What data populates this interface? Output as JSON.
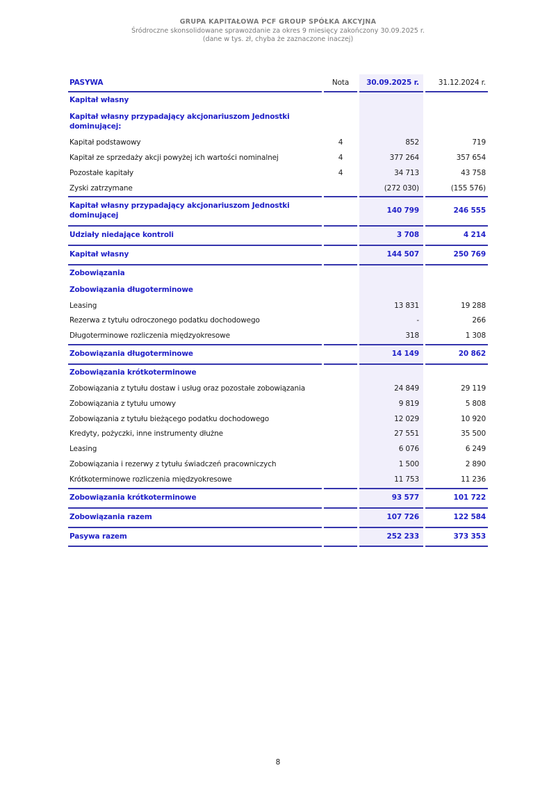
{
  "doc_header": {
    "company": "GRUPA KAPITAŁOWA PCF GROUP SPÓŁKA AKCYJNA",
    "subtitle": "Śródroczne skonsolidowane sprawozdanie za okres 9 miesięcy zakończony 30.09.2025 r.",
    "note": "(dane w tys. zł, chyba że zaznaczone inaczej)"
  },
  "colors": {
    "accent_text": "#2121c8",
    "rule_line": "#3535ad",
    "highlight_column_bg": "#f1effb",
    "muted_header_text": "#7a7a7a"
  },
  "table": {
    "columns": [
      "PASYWA",
      "Nota",
      "30.09.2025 r.",
      "31.12.2024 r."
    ],
    "rows": [
      {
        "label": "Kapitał własny",
        "nota": "",
        "v1": "",
        "v2": "",
        "style": "section"
      },
      {
        "label": "Kapitał własny przypadający akcjonariuszom Jednostki dominującej:",
        "nota": "",
        "v1": "",
        "v2": "",
        "style": "section"
      },
      {
        "label": "Kapitał podstawowy",
        "nota": "4",
        "v1": "852",
        "v2": "719",
        "style": "data"
      },
      {
        "label": "Kapitał ze sprzedaży akcji powyżej ich wartości nominalnej",
        "nota": "4",
        "v1": "377 264",
        "v2": "357 654",
        "style": "data"
      },
      {
        "label": "Pozostałe kapitały",
        "nota": "4",
        "v1": "34 713",
        "v2": "43 758",
        "style": "data"
      },
      {
        "label": "Zyski zatrzymane",
        "nota": "",
        "v1": "(272 030)",
        "v2": "(155 576)",
        "style": "data"
      },
      {
        "label": "Kapitał własny przypadający akcjonariuszom Jednostki dominującej",
        "nota": "",
        "v1": "140 799",
        "v2": "246 555",
        "style": "summary"
      },
      {
        "label": "Udziały niedające kontroli",
        "nota": "",
        "v1": "3 708",
        "v2": "4 214",
        "style": "summary"
      },
      {
        "label": "Kapitał własny",
        "nota": "",
        "v1": "144 507",
        "v2": "250 769",
        "style": "summary"
      },
      {
        "label": "Zobowiązania",
        "nota": "",
        "v1": "",
        "v2": "",
        "style": "section"
      },
      {
        "label": "Zobowiązania długoterminowe",
        "nota": "",
        "v1": "",
        "v2": "",
        "style": "section"
      },
      {
        "label": "Leasing",
        "nota": "",
        "v1": "13 831",
        "v2": "19 288",
        "style": "data"
      },
      {
        "label": "Rezerwa z tytułu odroczonego podatku dochodowego",
        "nota": "",
        "v1": "-",
        "v2": "266",
        "style": "data"
      },
      {
        "label": "Długoterminowe rozliczenia międzyokresowe",
        "nota": "",
        "v1": "318",
        "v2": "1 308",
        "style": "data"
      },
      {
        "label": "Zobowiązania długoterminowe",
        "nota": "",
        "v1": "14 149",
        "v2": "20 862",
        "style": "summary"
      },
      {
        "label": "Zobowiązania krótkoterminowe",
        "nota": "",
        "v1": "",
        "v2": "",
        "style": "section"
      },
      {
        "label": "Zobowiązania z tytułu dostaw i usług oraz pozostałe zobowiązania",
        "nota": "",
        "v1": "24 849",
        "v2": "29 119",
        "style": "data"
      },
      {
        "label": "Zobowiązania z tytułu umowy",
        "nota": "",
        "v1": "9 819",
        "v2": "5 808",
        "style": "data"
      },
      {
        "label": "Zobowiązania z tytułu bieżącego podatku dochodowego",
        "nota": "",
        "v1": "12 029",
        "v2": "10 920",
        "style": "data"
      },
      {
        "label": "Kredyty, pożyczki, inne instrumenty dłużne",
        "nota": "",
        "v1": "27 551",
        "v2": "35 500",
        "style": "data"
      },
      {
        "label": "Leasing",
        "nota": "",
        "v1": "6 076",
        "v2": "6 249",
        "style": "data"
      },
      {
        "label": "Zobowiązania i rezerwy z tytułu świadczeń pracowniczych",
        "nota": "",
        "v1": "1 500",
        "v2": "2 890",
        "style": "data"
      },
      {
        "label": "Krótkoterminowe rozliczenia międzyokresowe",
        "nota": "",
        "v1": "11 753",
        "v2": "11 236",
        "style": "data"
      },
      {
        "label": "Zobowiązania krótkoterminowe",
        "nota": "",
        "v1": "93 577",
        "v2": "101 722",
        "style": "summary"
      },
      {
        "label": "Zobowiązania razem",
        "nota": "",
        "v1": "107 726",
        "v2": "122 584",
        "style": "summary"
      },
      {
        "label": "Pasywa razem",
        "nota": "",
        "v1": "252 233",
        "v2": "373 353",
        "style": "summary"
      }
    ]
  },
  "footer": {
    "page_number": "8"
  }
}
